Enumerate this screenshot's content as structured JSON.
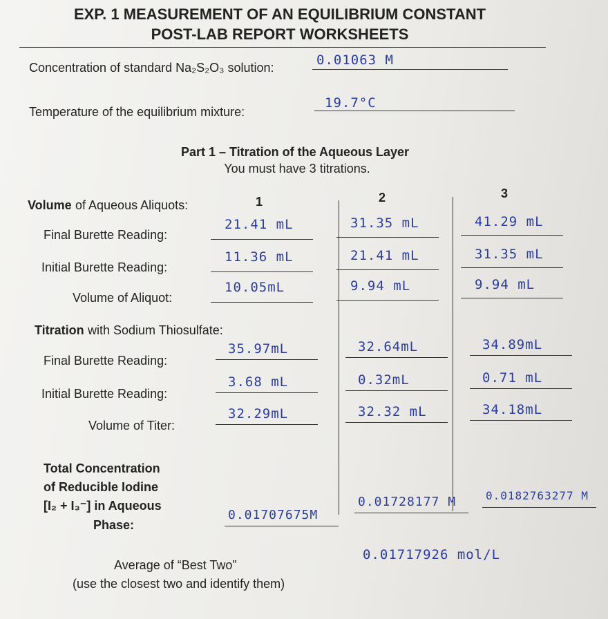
{
  "header": {
    "title_line1": "EXP. 1 MEASUREMENT OF AN EQUILIBRIUM CONSTANT",
    "title_line2": "POST-LAB REPORT WORKSHEETS"
  },
  "fields": [
    {
      "label": "Concentration of standard Na₂S₂O₃ solution:",
      "value": "0.01063 M"
    },
    {
      "label": "Temperature of the equilibrium mixture:",
      "value": "19.7°C"
    }
  ],
  "part1": {
    "title": "Part 1 – Titration of the Aqueous Layer",
    "subtitle": "You must have 3 titrations."
  },
  "aliquots": {
    "label_bold": "Volume",
    "label_rest": "of Aqueous Aliquots:",
    "columns": [
      "1",
      "2",
      "3"
    ],
    "rows": [
      {
        "label": "Final Burette Reading:",
        "values": [
          "21.41 mL",
          "31.35 mL",
          "41.29 mL"
        ]
      },
      {
        "label": "Initial Burette Reading:",
        "values": [
          "11.36 mL",
          "21.41 mL",
          "31.35 mL"
        ]
      },
      {
        "label": "Volume of Aliquot:",
        "values": [
          "10.05mL",
          "9.94 mL",
          "9.94 mL"
        ]
      }
    ]
  },
  "titration": {
    "label_bold": "Titration",
    "label_rest": "with Sodium Thiosulfate:",
    "rows": [
      {
        "label": "Final Burette Reading:",
        "values": [
          "35.97mL",
          "32.64mL",
          "34.89mL"
        ]
      },
      {
        "label": "Initial Burette Reading:",
        "values": [
          "3.68 mL",
          "0.32mL",
          "0.71 mL"
        ]
      },
      {
        "label": "Volume of Titer:",
        "values": [
          "32.29mL",
          "32.32 mL",
          "34.18mL"
        ]
      }
    ]
  },
  "total": {
    "label_lines": [
      "Total Concentration",
      "of Reducible Iodine",
      "[I₂ + I₃⁻] in Aqueous",
      "Phase:"
    ],
    "values": [
      "0.01707675M",
      "0.01728177 M",
      "0.0182763277 M"
    ]
  },
  "average": {
    "label_line1": "Average of “Best Two”",
    "label_line2": "(use the closest two and identify them)",
    "value": "0.01717926 mol/L"
  }
}
